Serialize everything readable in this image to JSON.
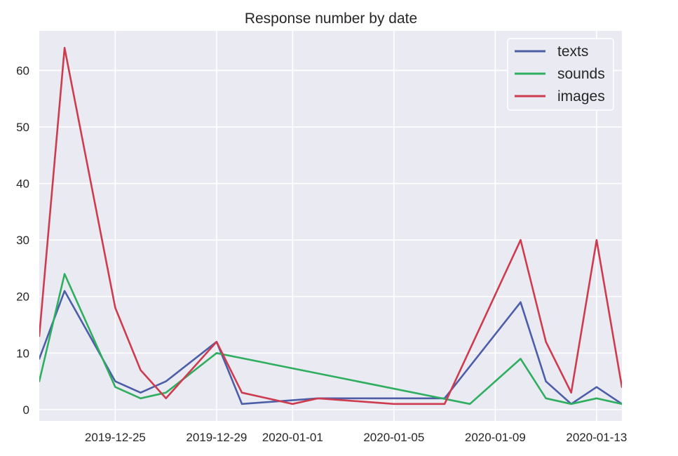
{
  "chart_data": {
    "type": "line",
    "title": "Response number by date",
    "xlabel": "",
    "ylabel": "",
    "x": [
      "2019-12-22",
      "2019-12-23",
      "2019-12-25",
      "2019-12-26",
      "2019-12-27",
      "2019-12-29",
      "2019-12-30",
      "2020-01-01",
      "2020-01-02",
      "2020-01-05",
      "2020-01-07",
      "2020-01-08",
      "2020-01-10",
      "2020-01-11",
      "2020-01-12",
      "2020-01-13",
      "2020-01-14"
    ],
    "series": [
      {
        "name": "texts",
        "color": "#4c5ea8",
        "values": [
          9,
          21,
          5,
          3,
          5,
          12,
          1,
          null,
          2,
          null,
          2,
          null,
          19,
          5,
          1,
          4,
          1
        ]
      },
      {
        "name": "sounds",
        "color": "#2eae5e",
        "values": [
          5,
          24,
          4,
          2,
          3,
          10,
          null,
          null,
          null,
          null,
          null,
          1,
          9,
          2,
          1,
          2,
          1
        ]
      },
      {
        "name": "images",
        "color": "#cd3b4f",
        "values": [
          13,
          64,
          18,
          7,
          2,
          12,
          3,
          1,
          2,
          1,
          1,
          null,
          30,
          12,
          3,
          30,
          4
        ]
      }
    ],
    "x_ticks": [
      "2019-12-25",
      "2019-12-29",
      "2020-01-01",
      "2020-01-05",
      "2020-01-09",
      "2020-01-13"
    ],
    "y_ticks": [
      0,
      10,
      20,
      30,
      40,
      50,
      60
    ],
    "xlim": [
      "2019-12-22",
      "2020-01-14"
    ],
    "ylim": [
      -2,
      67
    ],
    "grid": true,
    "legend_position": "top-right",
    "background": "#eaeaf2"
  }
}
